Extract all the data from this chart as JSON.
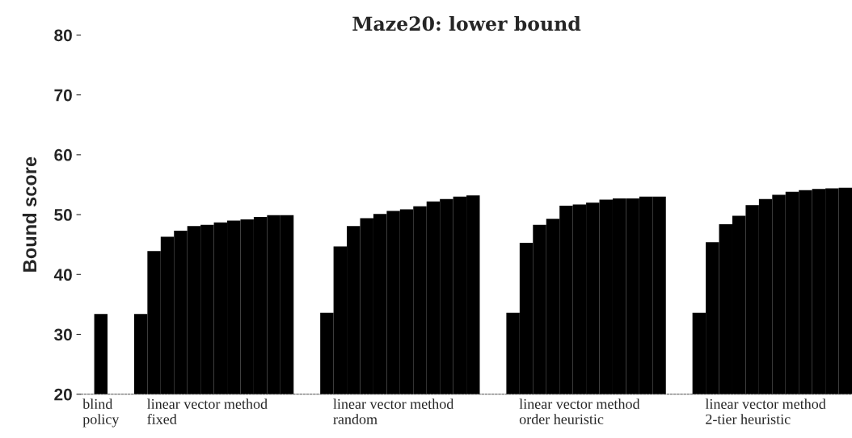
{
  "chart_data": {
    "type": "bar",
    "title": "Maze20: lower bound",
    "ylabel": "Bound score",
    "categories": [
      "blind\npolicy",
      null,
      null,
      null,
      null,
      null,
      null,
      null,
      "linear vector method\nfixed",
      null,
      null,
      null,
      null,
      null,
      null,
      null,
      null,
      null,
      null,
      null,
      null,
      null,
      "linear vector method\nrandom",
      null,
      null,
      null,
      null,
      null,
      null,
      null,
      null,
      null,
      null,
      null,
      null,
      null,
      "linear vector method\norder heuristic",
      null,
      null,
      null,
      null,
      null,
      null,
      null,
      null,
      null,
      null,
      null,
      null,
      null,
      "linear vector method\n2-tier heuristic",
      null,
      null,
      null,
      null,
      null,
      null
    ],
    "values": [
      33.4,
      null,
      null,
      33.4,
      43.9,
      46.3,
      47.3,
      48.1,
      48.3,
      48.7,
      49.0,
      49.2,
      49.6,
      49.9,
      49.9,
      null,
      null,
      33.6,
      44.7,
      48.1,
      49.4,
      50.1,
      50.6,
      50.9,
      51.4,
      52.2,
      52.6,
      53.0,
      53.2,
      null,
      null,
      33.6,
      45.3,
      48.3,
      49.3,
      51.5,
      51.7,
      52.0,
      52.5,
      52.7,
      52.7,
      53.0,
      53.0,
      null,
      null,
      33.6,
      45.4,
      48.4,
      49.8,
      51.6,
      52.6,
      53.3,
      53.8,
      54.1,
      54.3,
      54.4,
      54.5
    ],
    "color": "#000000",
    "ylim": [
      20,
      80
    ],
    "yticks": [
      20,
      30,
      40,
      50,
      60,
      70,
      80
    ]
  }
}
